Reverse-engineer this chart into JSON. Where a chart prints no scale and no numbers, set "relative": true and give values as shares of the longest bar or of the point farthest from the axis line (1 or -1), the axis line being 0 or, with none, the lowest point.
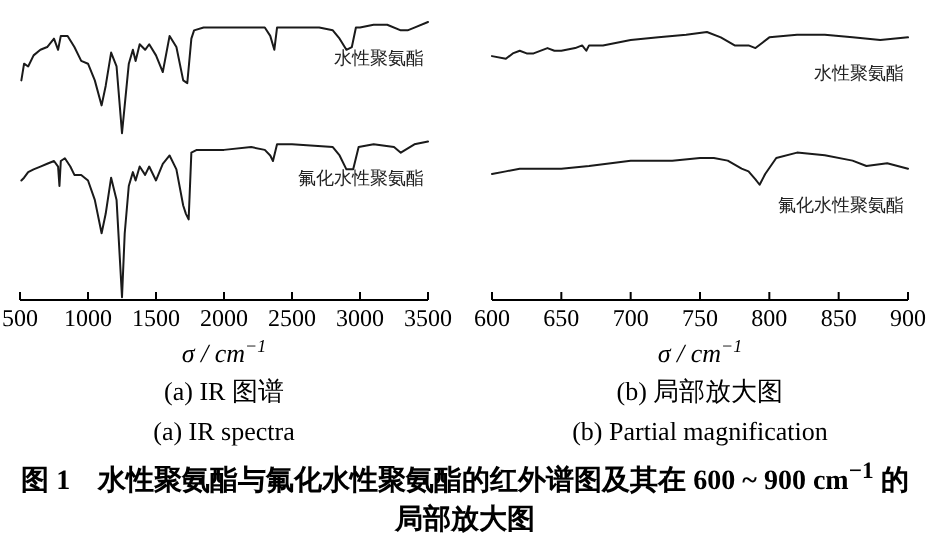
{
  "chart_data": [
    {
      "type": "line",
      "title": "(a) IR 图谱",
      "subtitle": "(a) IR spectra",
      "xlabel": "σ / cm$^{−1}$",
      "xlim": [
        500,
        3500
      ],
      "xticks": [
        500,
        1000,
        1500,
        2000,
        2500,
        3000,
        3500
      ],
      "relative": true,
      "tick_labels": "x",
      "annotations": [
        "图 1　水性聚氨酯与氟化水性聚氨酯的红外谱图及其在 600 ~ 900 cm$^{−1}$ 的局部放大图"
      ],
      "series": [
        {
          "name": "水性聚氨酯",
          "color": "#1a1a1a",
          "x": [
            510,
            530,
            560,
            600,
            650,
            700,
            750,
            780,
            800,
            850,
            900,
            950,
            1000,
            1050,
            1100,
            1130,
            1170,
            1210,
            1250,
            1270,
            1300,
            1330,
            1350,
            1380,
            1420,
            1450,
            1500,
            1550,
            1600,
            1650,
            1700,
            1730,
            1760,
            1780,
            1850,
            2000,
            2200,
            2300,
            2340,
            2370,
            2390,
            2500,
            2700,
            2800,
            2850,
            2900,
            2940,
            2970,
            3000,
            3100,
            3200,
            3300,
            3350,
            3400,
            3500
          ],
          "values": [
            0.79,
            0.85,
            0.84,
            0.88,
            0.9,
            0.91,
            0.94,
            0.9,
            0.95,
            0.95,
            0.91,
            0.86,
            0.85,
            0.79,
            0.7,
            0.77,
            0.89,
            0.84,
            0.6,
            0.7,
            0.85,
            0.9,
            0.86,
            0.92,
            0.9,
            0.92,
            0.88,
            0.82,
            0.95,
            0.91,
            0.79,
            0.78,
            0.94,
            0.97,
            0.98,
            0.98,
            0.98,
            0.98,
            0.95,
            0.9,
            0.98,
            0.98,
            0.98,
            0.97,
            0.94,
            0.9,
            0.91,
            0.98,
            0.98,
            0.99,
            0.99,
            0.97,
            0.97,
            0.98,
            1
          ]
        },
        {
          "name": "氟化水性聚氨酯",
          "color": "#1a1a1a",
          "x": [
            510,
            530,
            560,
            600,
            650,
            700,
            750,
            780,
            790,
            800,
            830,
            870,
            900,
            950,
            1000,
            1050,
            1100,
            1130,
            1170,
            1210,
            1250,
            1270,
            1300,
            1330,
            1350,
            1380,
            1420,
            1450,
            1500,
            1550,
            1600,
            1650,
            1700,
            1720,
            1740,
            1760,
            1800,
            2000,
            2200,
            2300,
            2340,
            2360,
            2390,
            2500,
            2800,
            2850,
            2900,
            2950,
            2990,
            3100,
            3250,
            3300,
            3400,
            3500
          ],
          "values": [
            0.43,
            0.44,
            0.46,
            0.47,
            0.48,
            0.49,
            0.5,
            0.48,
            0.41,
            0.5,
            0.51,
            0.48,
            0.45,
            0.45,
            0.43,
            0.36,
            0.24,
            0.31,
            0.44,
            0.36,
            0.01,
            0.24,
            0.41,
            0.46,
            0.43,
            0.48,
            0.45,
            0.48,
            0.43,
            0.49,
            0.52,
            0.47,
            0.34,
            0.31,
            0.29,
            0.53,
            0.54,
            0.54,
            0.55,
            0.54,
            0.52,
            0.5,
            0.56,
            0.56,
            0.55,
            0.52,
            0.47,
            0.47,
            0.55,
            0.56,
            0.55,
            0.53,
            0.56,
            0.57
          ]
        }
      ]
    },
    {
      "type": "line",
      "title": "(b) 局部放大图",
      "subtitle": "(b) Partial magnification",
      "xlabel": "σ / cm$^{−1}$",
      "xlim": [
        600,
        900
      ],
      "xticks": [
        600,
        650,
        700,
        750,
        800,
        850,
        900
      ],
      "relative": true,
      "tick_labels": "x",
      "series": [
        {
          "name": "水性聚氨酯",
          "color": "#1a1a1a",
          "x": [
            600,
            610,
            615,
            620,
            625,
            630,
            640,
            645,
            650,
            660,
            665,
            668,
            670,
            680,
            700,
            720,
            740,
            755,
            765,
            775,
            785,
            790,
            795,
            800,
            820,
            840,
            860,
            880,
            900
          ],
          "values": [
            0.91,
            0.9,
            0.92,
            0.93,
            0.92,
            0.92,
            0.94,
            0.93,
            0.93,
            0.94,
            0.95,
            0.93,
            0.95,
            0.95,
            0.97,
            0.98,
            0.99,
            1,
            0.98,
            0.95,
            0.95,
            0.94,
            0.96,
            0.98,
            0.99,
            0.99,
            0.98,
            0.97,
            0.98
          ]
        },
        {
          "name": "氟化水性聚氨酯",
          "color": "#1a1a1a",
          "x": [
            600,
            610,
            620,
            630,
            650,
            670,
            700,
            730,
            750,
            760,
            770,
            780,
            785,
            790,
            793,
            797,
            805,
            820,
            840,
            860,
            870,
            885,
            900
          ],
          "values": [
            0.47,
            0.48,
            0.49,
            0.49,
            0.49,
            0.5,
            0.52,
            0.52,
            0.53,
            0.53,
            0.52,
            0.49,
            0.48,
            0.45,
            0.43,
            0.47,
            0.53,
            0.55,
            0.54,
            0.52,
            0.5,
            0.51,
            0.49
          ]
        }
      ]
    }
  ]
}
